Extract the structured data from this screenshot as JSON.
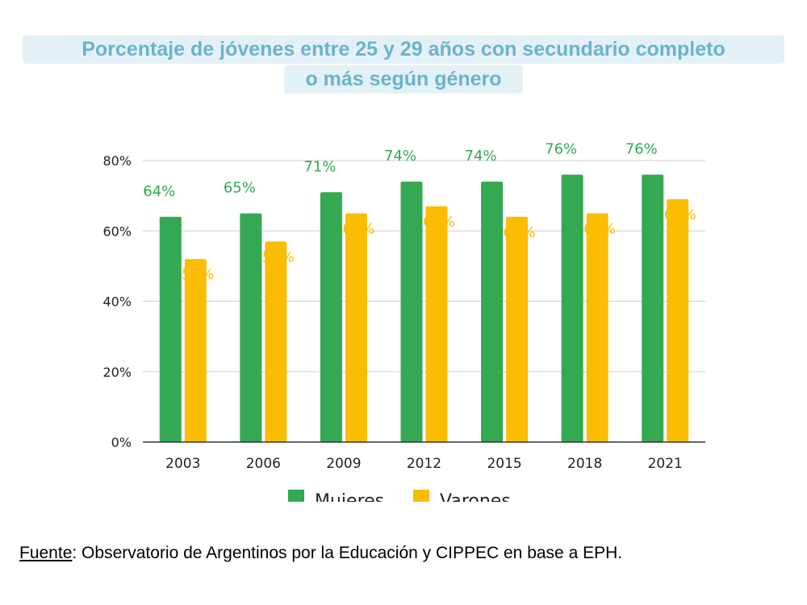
{
  "title": {
    "line1": "Porcentaje de jóvenes entre 25 y 29 años con secundario completo",
    "line2": "o más según género"
  },
  "source": {
    "label": "Fuente",
    "text": ": Observatorio de Argentinos por la Educación y CIPPEC en base a EPH."
  },
  "colors": {
    "mujeres": "#34a853",
    "varones": "#fbbc04",
    "title_text": "#6bb3cc",
    "title_bg": "#e3f1f6"
  },
  "chart_data": {
    "type": "bar",
    "title": "Porcentaje de jóvenes entre 25 y 29 años con secundario completo o más según género",
    "categories": [
      "2003",
      "2006",
      "2009",
      "2012",
      "2015",
      "2018",
      "2021"
    ],
    "series": [
      {
        "name": "Mujeres",
        "values": [
          64,
          65,
          71,
          74,
          74,
          76,
          76
        ],
        "labels": [
          "64%",
          "65%",
          "71%",
          "74%",
          "74%",
          "76%",
          "76%"
        ]
      },
      {
        "name": "Varones",
        "values": [
          52,
          57,
          65,
          67,
          64,
          65,
          69
        ],
        "labels": [
          "52%",
          "57%",
          "65%",
          "67%",
          "64%",
          "65%",
          "69%"
        ]
      }
    ],
    "ylim": [
      0,
      80
    ],
    "yticks": [
      "0%",
      "20%",
      "40%",
      "60%",
      "80%"
    ],
    "ytick_values": [
      0,
      20,
      40,
      60,
      80
    ],
    "legend": [
      "Mujeres",
      "Varones"
    ],
    "legend_position": "bottom",
    "grid": true,
    "xlabel": "",
    "ylabel": ""
  }
}
